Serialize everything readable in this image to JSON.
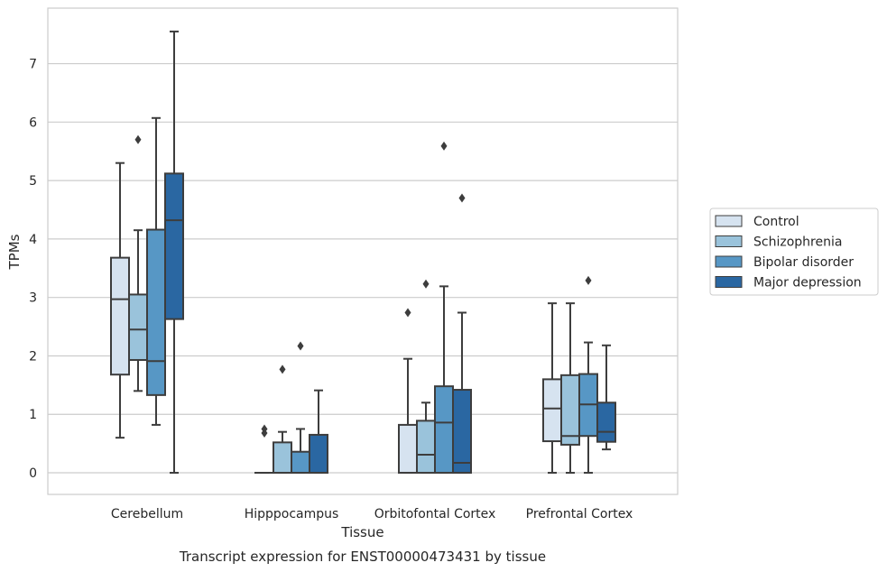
{
  "chart_data": {
    "type": "boxplot",
    "caption": "Transcript expression for ENST00000473431 by tissue",
    "xlabel": "Tissue",
    "ylabel": "TPMs",
    "ylim": [
      -0.37,
      7.95
    ],
    "yticks": [
      0,
      1,
      2,
      3,
      4,
      5,
      6,
      7
    ],
    "grid": "horizontal",
    "legend_position": "right",
    "categories": [
      "Cerebellum",
      "Hipppocampus",
      "Orbitofontal Cortex",
      "Prefrontal Cortex"
    ],
    "series": [
      {
        "name": "Control",
        "color": "#d6e3f0",
        "boxes": [
          {
            "whislo": 0.6,
            "q1": 1.68,
            "med": 2.97,
            "q3": 3.68,
            "whishi": 5.3,
            "fliers": []
          },
          {
            "whislo": 0.0,
            "q1": 0.0,
            "med": 0.0,
            "q3": 0.0,
            "whishi": 0.0,
            "fliers": [
              0.68,
              0.75
            ]
          },
          {
            "whislo": 0.0,
            "q1": 0.0,
            "med": 0.0,
            "q3": 0.82,
            "whishi": 1.95,
            "fliers": [
              2.74
            ]
          },
          {
            "whislo": 0.0,
            "q1": 0.54,
            "med": 1.1,
            "q3": 1.6,
            "whishi": 2.9,
            "fliers": []
          }
        ]
      },
      {
        "name": "Schizophrenia",
        "color": "#9ac3db",
        "boxes": [
          {
            "whislo": 1.4,
            "q1": 1.93,
            "med": 2.45,
            "q3": 3.05,
            "whishi": 4.15,
            "fliers": [
              5.7
            ]
          },
          {
            "whislo": 0.0,
            "q1": 0.0,
            "med": 0.0,
            "q3": 0.52,
            "whishi": 0.7,
            "fliers": [
              1.77
            ]
          },
          {
            "whislo": 0.0,
            "q1": 0.0,
            "med": 0.31,
            "q3": 0.89,
            "whishi": 1.2,
            "fliers": [
              3.23
            ]
          },
          {
            "whislo": 0.0,
            "q1": 0.48,
            "med": 0.63,
            "q3": 1.67,
            "whishi": 2.9,
            "fliers": []
          }
        ]
      },
      {
        "name": "Bipolar disorder",
        "color": "#5797c5",
        "boxes": [
          {
            "whislo": 0.82,
            "q1": 1.33,
            "med": 1.91,
            "q3": 4.16,
            "whishi": 6.07,
            "fliers": []
          },
          {
            "whislo": 0.0,
            "q1": 0.0,
            "med": 0.0,
            "q3": 0.36,
            "whishi": 0.75,
            "fliers": [
              2.17
            ]
          },
          {
            "whislo": 0.0,
            "q1": 0.0,
            "med": 0.86,
            "q3": 1.48,
            "whishi": 3.19,
            "fliers": [
              5.59
            ]
          },
          {
            "whislo": 0.0,
            "q1": 0.63,
            "med": 1.17,
            "q3": 1.69,
            "whishi": 2.23,
            "fliers": [
              3.29
            ]
          }
        ]
      },
      {
        "name": "Major depression",
        "color": "#2a67a2",
        "boxes": [
          {
            "whislo": 0.0,
            "q1": 2.63,
            "med": 4.32,
            "q3": 5.12,
            "whishi": 7.55,
            "fliers": []
          },
          {
            "whislo": 0.0,
            "q1": 0.0,
            "med": 0.0,
            "q3": 0.65,
            "whishi": 1.41,
            "fliers": []
          },
          {
            "whislo": 0.0,
            "q1": 0.0,
            "med": 0.17,
            "q3": 1.42,
            "whishi": 2.74,
            "fliers": [
              4.7
            ]
          },
          {
            "whislo": 0.4,
            "q1": 0.53,
            "med": 0.7,
            "q3": 1.2,
            "whishi": 2.18,
            "fliers": []
          }
        ]
      }
    ]
  }
}
